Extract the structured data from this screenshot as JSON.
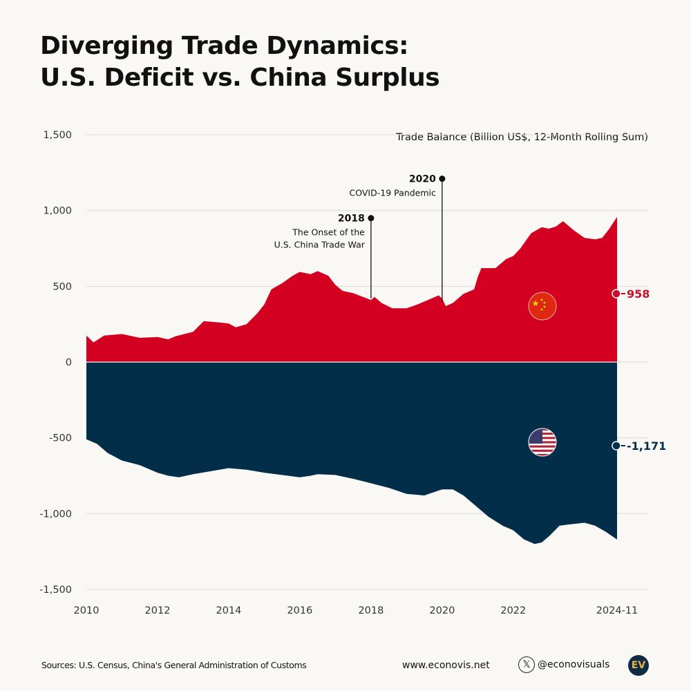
{
  "title_line1": "Diverging Trade Dynamics:",
  "title_line2": "U.S. Deficit vs. China Surplus",
  "chart_data": {
    "type": "area",
    "ylabel": "Trade Balance (Billion US$, 12-Month Rolling Sum)",
    "ylim": [
      -1500,
      1500
    ],
    "yticks": [
      1500,
      1000,
      500,
      0,
      -500,
      -1000,
      -1500
    ],
    "ytick_labels": [
      "1,500",
      "1,000",
      "500",
      "0",
      "-500",
      "-1,000",
      "-1,500"
    ],
    "xlim": [
      2010,
      2024.917
    ],
    "xticks": [
      2010,
      2012,
      2014,
      2016,
      2018,
      2020,
      2022,
      2024.917
    ],
    "xtick_labels": [
      "2010",
      "2012",
      "2014",
      "2016",
      "2018",
      "2020",
      "2022",
      "2024-11"
    ],
    "grid": true,
    "series": [
      {
        "key": "china",
        "color": "#d40022",
        "flag": "china-flag",
        "end_label": "958",
        "x": [
          2010,
          2010.2,
          2010.5,
          2011,
          2011.5,
          2012,
          2012.3,
          2012.5,
          2013,
          2013.3,
          2013.8,
          2014,
          2014.2,
          2014.5,
          2014.8,
          2015,
          2015.2,
          2015.5,
          2015.8,
          2016,
          2016.3,
          2016.5,
          2016.8,
          2017,
          2017.2,
          2017.5,
          2018,
          2018.1,
          2018.3,
          2018.6,
          2019,
          2019.3,
          2019.6,
          2019.9,
          2020,
          2020.1,
          2020.3,
          2020.6,
          2020.9,
          2021,
          2021.1,
          2021.5,
          2021.8,
          2022,
          2022.2,
          2022.5,
          2022.8,
          2023,
          2023.2,
          2023.4,
          2023.7,
          2024,
          2024.3,
          2024.5,
          2024.7,
          2024.917
        ],
        "values": [
          175,
          130,
          175,
          185,
          160,
          165,
          150,
          170,
          200,
          270,
          260,
          255,
          230,
          250,
          320,
          380,
          480,
          520,
          570,
          595,
          580,
          600,
          570,
          510,
          470,
          455,
          410,
          430,
          390,
          355,
          355,
          380,
          410,
          440,
          420,
          370,
          390,
          450,
          480,
          560,
          620,
          620,
          680,
          700,
          750,
          850,
          890,
          880,
          895,
          930,
          870,
          820,
          810,
          820,
          880,
          958
        ]
      },
      {
        "key": "us",
        "color": "#032e4a",
        "flag": "us-flag",
        "end_label": "-1,171",
        "x": [
          2010,
          2010.3,
          2010.6,
          2011,
          2011.5,
          2012,
          2012.3,
          2012.6,
          2013,
          2013.5,
          2014,
          2014.5,
          2015,
          2015.5,
          2016,
          2016.3,
          2016.5,
          2017,
          2017.5,
          2018,
          2018.5,
          2019,
          2019.5,
          2020,
          2020.3,
          2020.6,
          2021,
          2021.3,
          2021.7,
          2022,
          2022.3,
          2022.6,
          2022.8,
          2023,
          2023.3,
          2023.6,
          2024,
          2024.3,
          2024.6,
          2024.917
        ],
        "values": [
          -510,
          -540,
          -600,
          -650,
          -680,
          -730,
          -750,
          -760,
          -740,
          -720,
          -700,
          -710,
          -730,
          -745,
          -760,
          -750,
          -740,
          -745,
          -770,
          -800,
          -830,
          -870,
          -880,
          -840,
          -840,
          -880,
          -960,
          -1020,
          -1080,
          -1110,
          -1170,
          -1200,
          -1190,
          -1150,
          -1080,
          -1070,
          -1060,
          -1080,
          -1120,
          -1171
        ]
      }
    ],
    "annotations": [
      {
        "x": 2018,
        "y": 950,
        "base": 420,
        "year": "2018",
        "text1": "The Onset of the",
        "text2": "U.S. China Trade War"
      },
      {
        "x": 2020,
        "y": 1210,
        "base": 400,
        "year": "2020",
        "text1": "COVID-19 Pandemic",
        "text2": ""
      }
    ]
  },
  "footer": {
    "sources": "Sources: U.S. Census, China's General Administration of Customs",
    "website": "www.econovis.net",
    "handle": "@econovisuals",
    "logo": "EV"
  }
}
